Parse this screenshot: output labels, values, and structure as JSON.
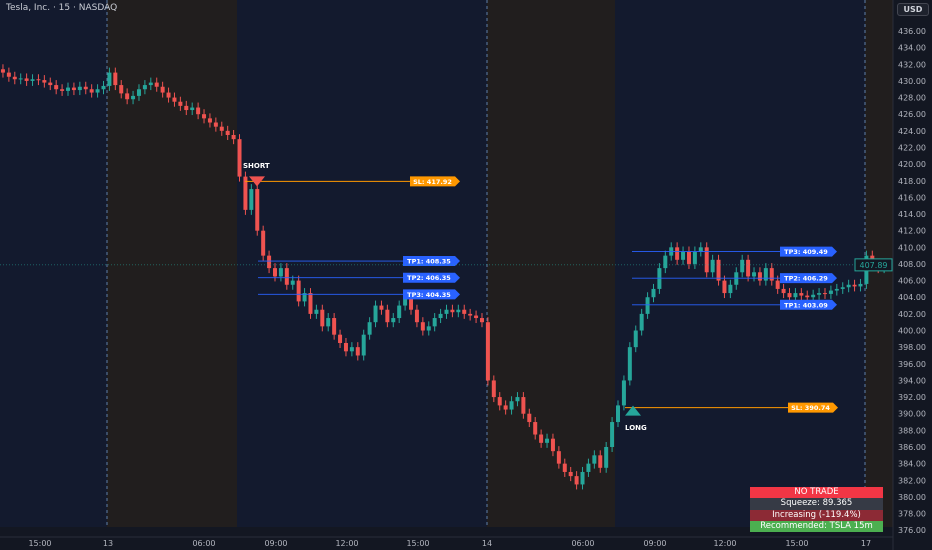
{
  "header": {
    "title": "Tesla, Inc. · 15 · NASDAQ",
    "currency": "USD"
  },
  "chart_data": {
    "type": "candlestick",
    "ylim": [
      375,
      438
    ],
    "y_ticks": [
      436,
      434,
      432,
      430,
      428,
      426,
      424,
      422,
      420,
      418,
      416,
      414,
      412,
      410,
      408,
      406,
      404,
      402,
      400,
      398,
      396,
      394,
      392,
      390,
      388,
      386,
      384,
      382,
      380,
      378,
      376
    ],
    "x_ticks": [
      "15:00",
      "13",
      "06:00",
      "09:00",
      "12:00",
      "15:00",
      "14",
      "06:00",
      "09:00",
      "12:00",
      "15:00",
      "17"
    ],
    "closes": [
      431,
      430.5,
      430.2,
      430.3,
      430,
      430.2,
      430.1,
      429.8,
      429.5,
      429,
      428.8,
      429.2,
      428.9,
      429.3,
      429,
      428.6,
      429,
      429.4,
      431,
      429.5,
      428.5,
      427.8,
      428.2,
      429,
      429.5,
      429.8,
      429.3,
      428.6,
      428,
      427.5,
      427,
      426.5,
      426.8,
      426,
      425.5,
      425,
      424.5,
      424,
      423.5,
      423,
      418.5,
      414.5,
      417,
      412,
      409,
      407.5,
      406.5,
      407.5,
      405.5,
      406,
      403.5,
      404.5,
      402,
      402.5,
      400.5,
      401.5,
      399.5,
      398.5,
      397.5,
      398,
      397,
      399.5,
      401,
      403,
      402.5,
      401,
      401.5,
      403,
      404,
      402.5,
      401,
      400,
      400.5,
      401.5,
      402,
      402.5,
      402.2,
      402.5,
      402,
      401.8,
      401.5,
      401,
      394,
      392,
      391,
      390.5,
      391.5,
      392,
      390,
      389,
      387.5,
      386.5,
      387,
      385.5,
      384,
      383,
      382.5,
      381.5,
      383,
      384,
      385,
      383.5,
      386,
      389,
      391,
      394,
      398,
      400,
      402,
      404,
      405,
      407.5,
      409,
      410,
      408.5,
      409.5,
      408,
      409.5,
      410,
      407,
      408.5,
      406,
      404.5,
      405.5,
      407,
      408.5,
      406.5,
      407,
      406,
      407.5,
      406,
      405,
      404.5,
      404,
      404.5,
      404.2,
      404,
      404.3,
      404.5,
      404.4,
      404.8,
      405,
      405.2,
      405.5,
      405.3,
      405.6,
      409,
      408,
      407.5,
      408,
      407.89
    ],
    "current_price": "407.89",
    "colors": {
      "up": "#26a69a",
      "down": "#ef5350",
      "session_regular": "#131a2e",
      "session_extended": "#211e1e",
      "sl": "#ff9800",
      "tp": "#2962ff"
    },
    "trades": [
      {
        "signal": "SHORT",
        "sl": {
          "label": "SL: 417.92",
          "price": 417.92
        },
        "tps": [
          {
            "label": "TP1: 408.35",
            "price": 408.35
          },
          {
            "label": "TP2: 406.35",
            "price": 406.35
          },
          {
            "label": "TP3: 404.35",
            "price": 404.35
          }
        ]
      },
      {
        "signal": "LONG",
        "sl": {
          "label": "SL: 390.74",
          "price": 390.74
        },
        "tps": [
          {
            "label": "TP3: 409.49",
            "price": 409.49
          },
          {
            "label": "TP2: 406.29",
            "price": 406.29
          },
          {
            "label": "TP1: 403.09",
            "price": 403.09
          }
        ]
      }
    ]
  },
  "table": {
    "rows": [
      {
        "text": "NO TRADE",
        "bg": "#f23645"
      },
      {
        "text": "Squeeze: 89.365",
        "bg": "#363a45"
      },
      {
        "text": "Increasing (-119.4%)",
        "bg": "#8c2a35"
      },
      {
        "text": "Recommended: TSLA 15m",
        "bg": "#4caf50"
      }
    ]
  }
}
